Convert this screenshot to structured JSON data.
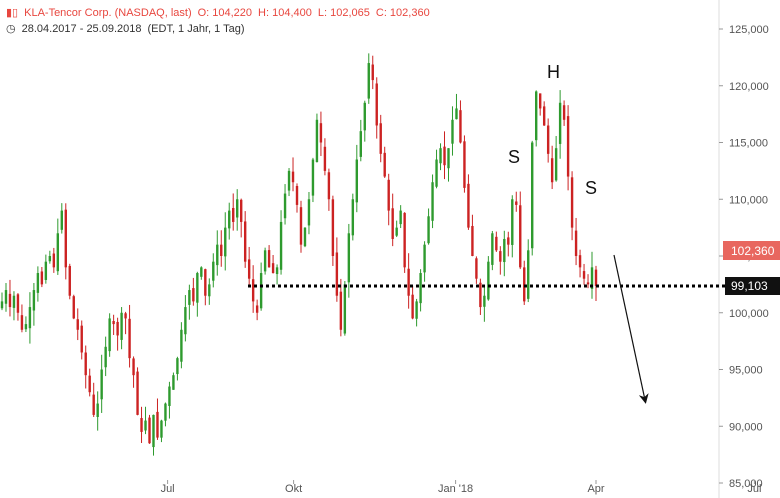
{
  "header": {
    "title": "KLA-Tencor Corp. (NASDAQ, last)",
    "open": "O: 104,220",
    "high": "H: 104,400",
    "low": "L: 102,065",
    "close": "C: 102,360",
    "range": "28.04.2017 - 25.09.2018",
    "interval": "(EDT, 1 Jahr, 1 Tag)"
  },
  "colors": {
    "up": "#2e9a2e",
    "down": "#cc2222",
    "accent": "#e8473f"
  },
  "chart_data": {
    "type": "candlestick",
    "y_ticks": [
      "85,000",
      "90,000",
      "95,000",
      "100,000",
      "105,000",
      "110,000",
      "115,000",
      "120,000",
      "125,000"
    ],
    "x_ticks": [
      "Jul",
      "Okt",
      "Jan '18",
      "Apr",
      "Jul"
    ],
    "last_price": "102,360",
    "support_label": "99,103",
    "annotations": [
      "S",
      "H",
      "S"
    ],
    "close": [
      101.0,
      102.0,
      100.5,
      101.5,
      100.0,
      98.5,
      99.0,
      100.5,
      102.0,
      103.5,
      102.5,
      104.5,
      105.0,
      104.0,
      107.0,
      109.0,
      104.0,
      101.5,
      99.5,
      98.5,
      96.5,
      94.5,
      93.0,
      91.0,
      92.0,
      95.0,
      97.0,
      99.5,
      99.0,
      98.0,
      100.0,
      99.5,
      96.0,
      94.5,
      91.0,
      89.5,
      90.5,
      88.5,
      91.0,
      89.0,
      90.5,
      92.0,
      93.5,
      94.5,
      96.0,
      98.5,
      100.5,
      102.0,
      101.0,
      103.5,
      104.0,
      101.5,
      102.5,
      104.5,
      106.0,
      105.0,
      107.5,
      109.0,
      108.0,
      110.0,
      108.0,
      104.5,
      103.0,
      101.0,
      100.0,
      103.5,
      105.5,
      104.0,
      103.5,
      104.0,
      108.0,
      110.5,
      112.5,
      111.5,
      109.5,
      106.0,
      107.5,
      110.0,
      113.5,
      117.0,
      115.0,
      112.5,
      110.0,
      105.0,
      101.5,
      98.5,
      102.5,
      107.0,
      110.0,
      113.5,
      116.0,
      118.5,
      122.0,
      120.5,
      116.5,
      114.0,
      112.0,
      109.0,
      106.5,
      107.5,
      109.0,
      104.0,
      101.5,
      99.5,
      101.0,
      103.5,
      106.0,
      108.5,
      111.5,
      113.5,
      114.5,
      113.0,
      114.5,
      117.0,
      118.0,
      115.0,
      111.0,
      107.5,
      105.0,
      103.0,
      100.5,
      101.5,
      104.5,
      107.0,
      105.5,
      104.5,
      106.5,
      106.0,
      110.0,
      109.5,
      104.0,
      101.0,
      105.5,
      115.0,
      119.5,
      118.0,
      116.5,
      114.0,
      111.5,
      114.5,
      118.5,
      117.0,
      112.0,
      107.5,
      105.0,
      104.0,
      103.0,
      102.5,
      104.0,
      102.36
    ],
    "ylim": [
      83.0,
      127.0
    ]
  },
  "axis_note": "values in thousands"
}
